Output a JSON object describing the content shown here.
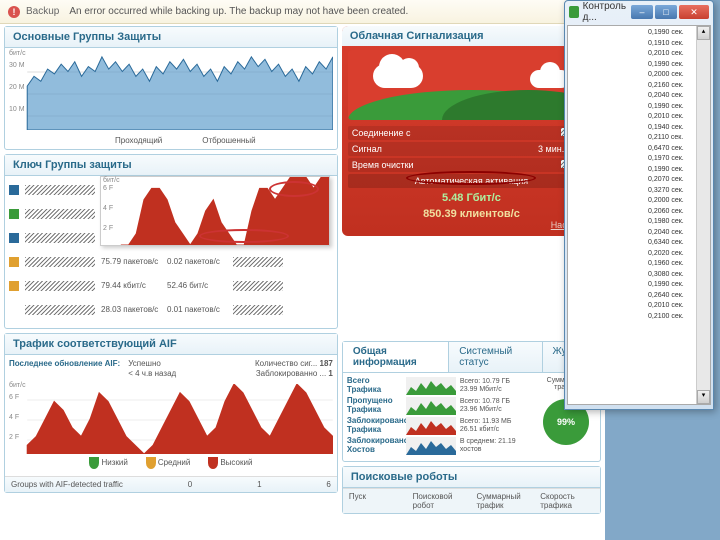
{
  "alert": {
    "label": "Backup",
    "message": "An error occurred while backing up. The backup may not have been created."
  },
  "panels": {
    "groups_title": "Основные Группы Защиты",
    "key_title": "Ключ Группы защиты",
    "cloud_title": "Облачная Сигнализация",
    "aif_title": "Трафик соответствующий AIF",
    "info_title": "Общая информация",
    "robots_title": "Поисковые роботы"
  },
  "blue_chart": {
    "yticks": [
      "30 M",
      "20 M",
      "10 M"
    ],
    "unit": "бит/с",
    "series_color": "#2a6a9a",
    "fill_color": "#5a9acaAA",
    "values": [
      18,
      22,
      20,
      25,
      23,
      27,
      24,
      28,
      22,
      26,
      24,
      30,
      25,
      28,
      24,
      27,
      22,
      25,
      20,
      26,
      23,
      28,
      25,
      29,
      24,
      27,
      22,
      25,
      20,
      26,
      23,
      28,
      25,
      30,
      26,
      29,
      24,
      27,
      22,
      25,
      20,
      26,
      23,
      28,
      25,
      30
    ],
    "ymax": 32
  },
  "key_rows": [
    {
      "color": "#2a6a9a",
      "c1": "",
      "c2": "",
      "c3": ""
    },
    {
      "color": "#3a9b3a",
      "c1": "109.58 пакетов/с",
      "c2": "1.43 пакетов/с",
      "c3": ""
    },
    {
      "color": "#2a6a9a",
      "c1": "128.04 кбит/с",
      "c2": "37.93 бит/с",
      "c3": ""
    },
    {
      "color": "#e0a030",
      "c1": "75.79 пакетов/с",
      "c2": "0.02 пакетов/с",
      "c3": ""
    },
    {
      "color": "#e0a030",
      "c1": "79.44 кбит/с",
      "c2": "52.46 бит/с",
      "c3": ""
    },
    {
      "blank": true,
      "c1": "28.03 пакетов/с",
      "c2": "0.01 пакетов/с",
      "c3": ""
    }
  ],
  "key_cols": [
    "Проходящий",
    "Отброшенный"
  ],
  "popup": {
    "yticks": [
      "6 F",
      "4 F",
      "2 F"
    ],
    "unit": "бит/с",
    "color": "#c03020",
    "values": [
      0,
      0,
      1,
      4,
      5,
      5,
      4,
      2,
      1,
      0,
      1,
      3,
      4,
      2,
      1,
      0,
      0,
      3,
      5,
      5,
      4,
      5,
      6,
      6,
      6,
      5,
      6,
      6
    ],
    "ymax": 6
  },
  "cloud": {
    "rows": [
      {
        "k": "Соединение с",
        "v": ""
      },
      {
        "k": "Сигнал",
        "v": "3 мин. назад"
      },
      {
        "k": "Время очистки",
        "v": ""
      }
    ],
    "auto": "Автоматическая активация",
    "big1": "5.48 Гбит/с",
    "big2": "850.39 клиентов/с",
    "link": "Настройка",
    "red": "#d93e2e",
    "green": "#3a9b3a"
  },
  "aif": {
    "last_label": "Последнее обновление AIF:",
    "last_val1": "Успешно",
    "last_val2": "< 4 ч.в назад",
    "count_label": "Количество сиг...",
    "count_val": "187",
    "blocked_label": "Заблокированно ...",
    "blocked_val": "1",
    "chart": {
      "color": "#c03020",
      "values": [
        1,
        2,
        4,
        6,
        5,
        3,
        2,
        4,
        7,
        6,
        4,
        2,
        1,
        0,
        1,
        3,
        5,
        7,
        6,
        4,
        2,
        3,
        6,
        8,
        7,
        5,
        3,
        2,
        4,
        6,
        8,
        7,
        5,
        3,
        2
      ],
      "ymax": 8,
      "yticks": [
        "6 F",
        "4 F",
        "2 F"
      ],
      "unit": "бит/с"
    },
    "legend": [
      {
        "color": "#3a9b3a",
        "label": "Низкий"
      },
      {
        "color": "#e0a030",
        "label": "Средний"
      },
      {
        "color": "#c03020",
        "label": "Высокий"
      }
    ],
    "footer_label": "Groups with AIF-detected traffic",
    "footer_vals": [
      "0",
      "1",
      "6"
    ]
  },
  "info": {
    "tabs": [
      "Общая информация",
      "Системный статус",
      "Журнал"
    ],
    "rows": [
      {
        "label": "Всего Трафика",
        "spark": "green",
        "v1": "Всего: 10.79 ГБ",
        "v2": "23.99 Мбит/с"
      },
      {
        "label": "Пропущено Трафика",
        "spark": "green",
        "v1": "Всего: 10.78 ГБ",
        "v2": "23.96 Мбит/с"
      },
      {
        "label": "Заблокировано Трафика",
        "spark": "red",
        "v1": "Всего: 11.93 МБ",
        "v2": "26.51 кбит/с"
      },
      {
        "label": "Заблокировано Хостов",
        "spark": "blue",
        "v1": "В среднем: 21.19",
        "v2": "хостов"
      }
    ],
    "pie_label": "Суммарный трафик",
    "pie_pct": "99%"
  },
  "robots": {
    "cols": [
      "Пуск",
      "Поисковой робот",
      "Суммарный трафик",
      "Скорость трафика"
    ]
  },
  "window": {
    "title": "Контроль д...",
    "times": [
      "0,1990 сек.",
      "0,1910 сек.",
      "0,2010 сек.",
      "0,1990 сек.",
      "0,2000 сек.",
      "0,2160 сек.",
      "0,2040 сек.",
      "0,1990 сек.",
      "0,2010 сек.",
      "0,1940 сек.",
      "0,2110 сек.",
      "0,6470 сек.",
      "0,1970 сек.",
      "0,1990 сек.",
      "0,2070 сек.",
      "0,3270 сек.",
      "0,2000 сек.",
      "0,2060 сек.",
      "0,1980 сек.",
      "0,2040 сек.",
      "0,6340 сек.",
      "0,2020 сек.",
      "0,1960 сек.",
      "0,3080 сек.",
      "0,1990 сек.",
      "0,2640 сек.",
      "0,2010 сек.",
      "0,2100 сек."
    ]
  }
}
